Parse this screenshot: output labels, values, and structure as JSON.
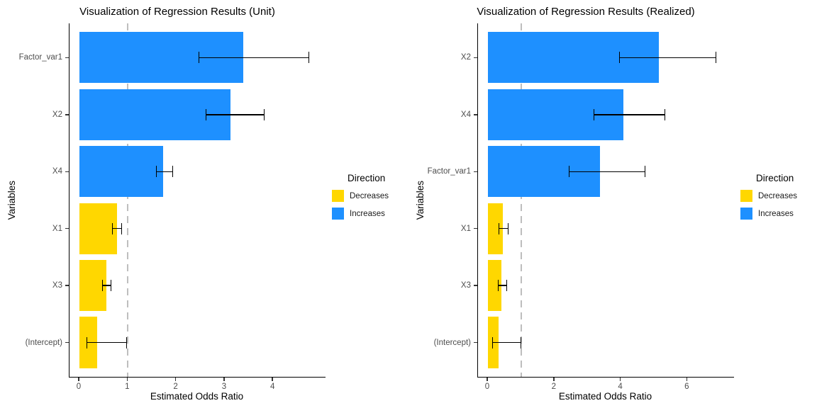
{
  "colors": {
    "decreases": "#FFD700",
    "increases": "#1E90FF",
    "reference_line": "#BEBEBE",
    "axis_line": "#000000",
    "tick_label": "#4D4D4D"
  },
  "legend": {
    "title": "Direction",
    "items": [
      {
        "label": "Decreases",
        "color_key": "decreases"
      },
      {
        "label": "Increases",
        "color_key": "increases"
      }
    ]
  },
  "chart_data": [
    {
      "type": "bar",
      "orientation": "horizontal",
      "title": "Visualization of Regression Results (Unit)",
      "xlabel": "Estimated Odds Ratio",
      "ylabel": "Variables",
      "xlim": [
        0,
        5.08
      ],
      "xticks": [
        0,
        1,
        2,
        3,
        4
      ],
      "ref_line_x": 1,
      "grid": false,
      "legend_position": "right",
      "categories": [
        "Factor_var1",
        "X2",
        "X4",
        "X1",
        "X3",
        "(Intercept)"
      ],
      "values": [
        3.38,
        3.12,
        1.73,
        0.78,
        0.55,
        0.36
      ],
      "ci_low": [
        2.46,
        2.61,
        1.58,
        0.67,
        0.47,
        0.14
      ],
      "ci_high": [
        4.71,
        3.79,
        1.9,
        0.85,
        0.63,
        0.95
      ],
      "direction": [
        "Increases",
        "Increases",
        "Increases",
        "Decreases",
        "Decreases",
        "Decreases"
      ]
    },
    {
      "type": "bar",
      "orientation": "horizontal",
      "title": "Visualization of Regression Results (Realized)",
      "xlabel": "Estimated Odds Ratio",
      "ylabel": "Variables",
      "xlim": [
        0,
        7.4
      ],
      "xticks": [
        0,
        2,
        4,
        6
      ],
      "ref_line_x": 1,
      "grid": false,
      "legend_position": "right",
      "categories": [
        "X2",
        "X4",
        "Factor_var1",
        "X1",
        "X3",
        "(Intercept)"
      ],
      "values": [
        5.14,
        4.07,
        3.37,
        0.45,
        0.41,
        0.32
      ],
      "ci_low": [
        3.95,
        3.18,
        2.43,
        0.33,
        0.3,
        0.12
      ],
      "ci_high": [
        6.82,
        5.29,
        4.69,
        0.58,
        0.53,
        0.95
      ],
      "direction": [
        "Increases",
        "Increases",
        "Increases",
        "Decreases",
        "Decreases",
        "Decreases"
      ]
    }
  ]
}
